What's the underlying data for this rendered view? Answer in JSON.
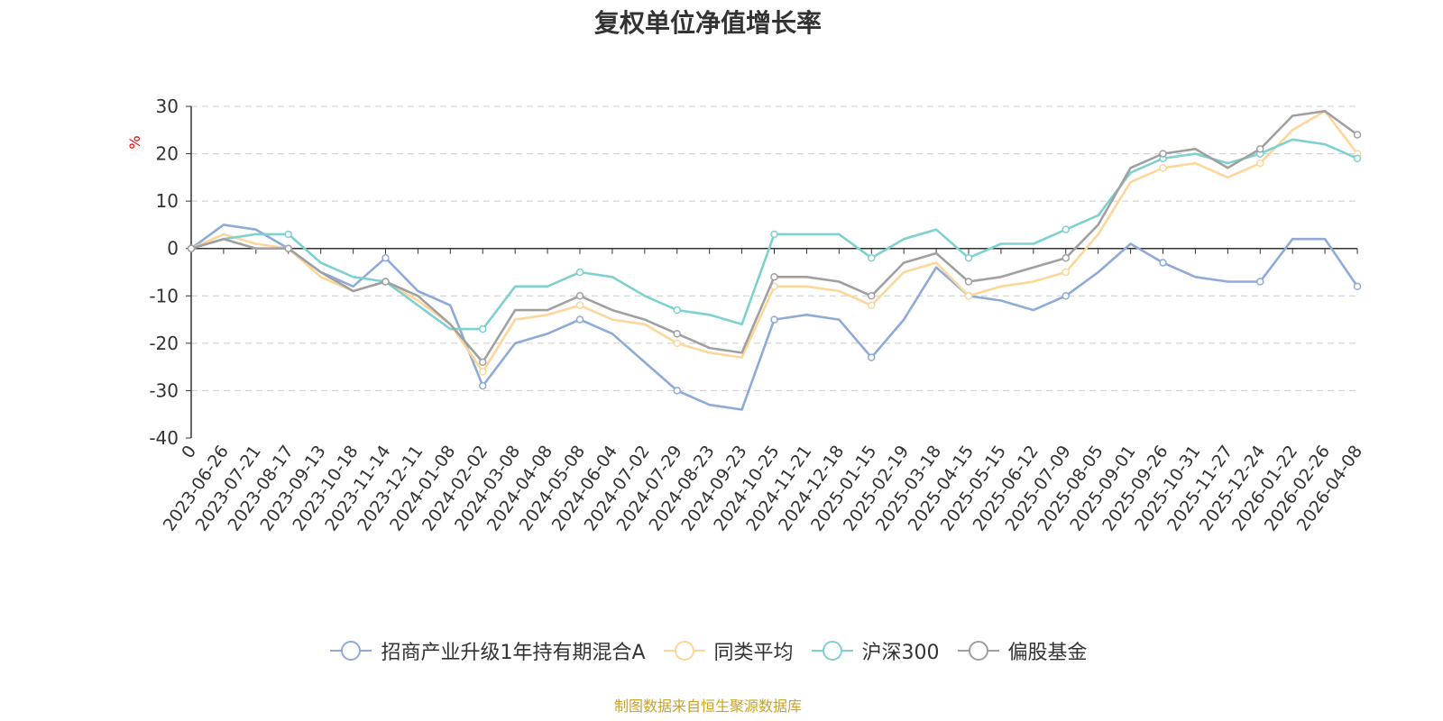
{
  "chart_data": {
    "type": "line",
    "title": "复权单位净值增长率",
    "ylabel": "%",
    "ylim": [
      -40,
      30
    ],
    "yticks": [
      30,
      20,
      10,
      0,
      -10,
      -20,
      -30,
      -40
    ],
    "grid": true,
    "legend_position": "bottom",
    "x": [
      "0",
      "2023-06-26",
      "2023-07-21",
      "2023-08-17",
      "2023-09-13",
      "2023-10-18",
      "2023-11-14",
      "2023-12-11",
      "2024-01-08",
      "2024-02-02",
      "2024-03-08",
      "2024-04-08",
      "2024-05-08",
      "2024-06-04",
      "2024-07-02",
      "2024-07-29",
      "2024-08-23",
      "2024-09-23",
      "2024-10-25",
      "2024-11-21",
      "2024-12-18",
      "2025-01-15",
      "2025-02-19",
      "2025-03-18",
      "2025-04-15",
      "2025-05-15",
      "2025-06-12",
      "2025-07-09",
      "2025-08-05",
      "2025-09-01",
      "2025-09-26",
      "2025-10-31",
      "2025-11-27",
      "2025-12-24",
      "2026-01-22",
      "2026-02-26",
      "2026-04-08"
    ],
    "series": [
      {
        "name": "招商产业升级1年持有期混合A",
        "color": "#8eaad8",
        "values": [
          0,
          5,
          4,
          0,
          -5,
          -8,
          -2,
          -9,
          -12,
          -29,
          -20,
          -18,
          -15,
          -18,
          -24,
          -30,
          -33,
          -34,
          -15,
          -14,
          -15,
          -23,
          -15,
          -4,
          -10,
          -11,
          -13,
          -10,
          -5,
          1,
          -3,
          -6,
          -7,
          -7,
          2,
          2,
          -8
        ]
      },
      {
        "name": "同类平均",
        "color": "#fdd699",
        "values": [
          0,
          3,
          1,
          0,
          -6,
          -9,
          -7,
          -11,
          -16,
          -26,
          -15,
          -14,
          -12,
          -15,
          -16,
          -20,
          -22,
          -23,
          -8,
          -8,
          -9,
          -12,
          -5,
          -3,
          -10,
          -8,
          -7,
          -5,
          3,
          14,
          17,
          18,
          15,
          18,
          25,
          29,
          20
        ]
      },
      {
        "name": "沪深300",
        "color": "#7fd0d0",
        "values": [
          0,
          2,
          3,
          3,
          -3,
          -6,
          -7,
          -12,
          -17,
          -17,
          -8,
          -8,
          -5,
          -6,
          -10,
          -13,
          -14,
          -16,
          3,
          3,
          3,
          -2,
          2,
          4,
          -2,
          1,
          1,
          4,
          7,
          16,
          19,
          20,
          18,
          20,
          23,
          22,
          19
        ]
      },
      {
        "name": "偏股基金",
        "color": "#a0a0a0",
        "values": [
          0,
          2,
          0,
          0,
          -5,
          -9,
          -7,
          -10,
          -16,
          -24,
          -13,
          -13,
          -10,
          -13,
          -15,
          -18,
          -21,
          -22,
          -6,
          -6,
          -7,
          -10,
          -3,
          -1,
          -7,
          -6,
          -4,
          -2,
          5,
          17,
          20,
          21,
          17,
          21,
          28,
          29,
          24
        ]
      }
    ]
  },
  "source_note": "制图数据来自恒生聚源数据库"
}
